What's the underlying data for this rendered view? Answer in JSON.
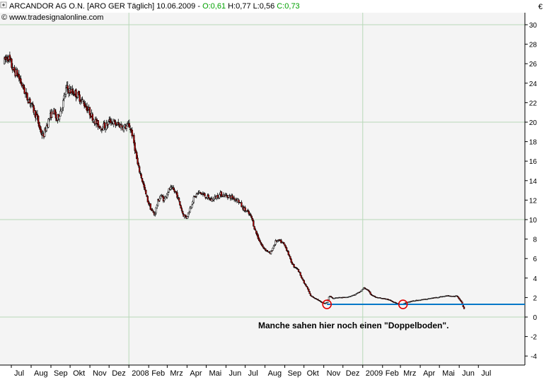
{
  "header": {
    "title_main": "ARCANDOR AG O.N. [ARO GER  Täglich] 10.06.2009 - ",
    "open_label": "O:0,61",
    "hl_label": " H:0,77 L:0,56 ",
    "close_label": "C:0,73",
    "copyright": "© www.tradesignalonline.com",
    "currency": "€"
  },
  "annotation": "Manche sahen hier noch einen \"Doppelboden\".",
  "colors": {
    "plot_bg": "#f4f4f4",
    "grid_major": "#b8d8b8",
    "grid_minor": "#dcdcdc",
    "candle_up_fill": "#ffffff",
    "candle_down_fill": "#b00000",
    "candle_outline": "#000000",
    "support_line": "#0078c8",
    "circle_marker": "#e00000",
    "open_text": "#00a000",
    "close_text": "#00a000"
  },
  "chart_data": {
    "type": "candlestick",
    "title": "ARCANDOR AG O.N. [ARO GER  Täglich] 10.06.2009",
    "xlabel": "",
    "ylabel": "€",
    "ylim": [
      -4,
      30
    ],
    "yticks": [
      30,
      28,
      26,
      24,
      22,
      20,
      18,
      16,
      14,
      12,
      10,
      8,
      6,
      4,
      2,
      0,
      -2,
      -4
    ],
    "xticks": [
      "Jul",
      "Aug",
      "Sep",
      "Okt",
      "Nov",
      "Dez",
      "2008",
      "Feb",
      "Mrz",
      "Apr",
      "Mai",
      "Jun",
      "Jul",
      "Aug",
      "Sep",
      "Okt",
      "Nov",
      "Dez",
      "2009",
      "Feb",
      "Mrz",
      "Apr",
      "Mai",
      "Jun",
      "Jul"
    ],
    "grid": true,
    "major_gridlines_y": [
      30,
      20,
      10,
      0
    ],
    "major_gridlines_x": [
      "2008",
      "2009"
    ],
    "last_bar": {
      "date": "10.06.2009",
      "open": 0.61,
      "high": 0.77,
      "low": 0.56,
      "close": 0.73
    },
    "price_path": [
      [
        "2007-06-20",
        26.2
      ],
      [
        "2007-06-25",
        26.8
      ],
      [
        "2007-06-30",
        26.0
      ],
      [
        "2007-07-05",
        25.2
      ],
      [
        "2007-07-10",
        25.0
      ],
      [
        "2007-07-15",
        24.2
      ],
      [
        "2007-07-20",
        23.5
      ],
      [
        "2007-07-25",
        22.5
      ],
      [
        "2007-07-30",
        22.2
      ],
      [
        "2007-08-05",
        21.2
      ],
      [
        "2007-08-10",
        20.5
      ],
      [
        "2007-08-15",
        19.2
      ],
      [
        "2007-08-20",
        18.5
      ],
      [
        "2007-08-25",
        19.6
      ],
      [
        "2007-08-30",
        20.5
      ],
      [
        "2007-09-05",
        21.2
      ],
      [
        "2007-09-10",
        20.2
      ],
      [
        "2007-09-15",
        21.0
      ],
      [
        "2007-09-20",
        22.0
      ],
      [
        "2007-09-25",
        23.5
      ],
      [
        "2007-10-01",
        23.2
      ],
      [
        "2007-10-08",
        23.0
      ],
      [
        "2007-10-15",
        22.6
      ],
      [
        "2007-10-22",
        22.0
      ],
      [
        "2007-10-30",
        21.2
      ],
      [
        "2007-11-05",
        20.5
      ],
      [
        "2007-11-12",
        19.8
      ],
      [
        "2007-11-19",
        19.5
      ],
      [
        "2007-11-26",
        19.6
      ],
      [
        "2007-12-03",
        20.2
      ],
      [
        "2007-12-10",
        19.8
      ],
      [
        "2007-12-17",
        19.7
      ],
      [
        "2007-12-24",
        19.5
      ],
      [
        "2008-01-02",
        19.6
      ],
      [
        "2008-01-06",
        18.8
      ],
      [
        "2008-01-10",
        17.5
      ],
      [
        "2008-01-15",
        15.5
      ],
      [
        "2008-01-20",
        14.5
      ],
      [
        "2008-01-25",
        13.2
      ],
      [
        "2008-01-30",
        12.0
      ],
      [
        "2008-02-05",
        11.0
      ],
      [
        "2008-02-10",
        10.5
      ],
      [
        "2008-02-15",
        11.8
      ],
      [
        "2008-02-20",
        12.5
      ],
      [
        "2008-02-25",
        12.0
      ],
      [
        "2008-03-01",
        12.8
      ],
      [
        "2008-03-06",
        13.2
      ],
      [
        "2008-03-11",
        13.0
      ],
      [
        "2008-03-16",
        12.6
      ],
      [
        "2008-03-21",
        11.5
      ],
      [
        "2008-03-26",
        10.5
      ],
      [
        "2008-03-31",
        10.2
      ],
      [
        "2008-04-05",
        11.0
      ],
      [
        "2008-04-10",
        12.0
      ],
      [
        "2008-04-15",
        12.5
      ],
      [
        "2008-04-20",
        12.8
      ],
      [
        "2008-04-25",
        12.6
      ],
      [
        "2008-05-02",
        12.3
      ],
      [
        "2008-05-09",
        12.0
      ],
      [
        "2008-05-16",
        12.3
      ],
      [
        "2008-05-23",
        12.6
      ],
      [
        "2008-05-30",
        12.5
      ],
      [
        "2008-06-06",
        12.4
      ],
      [
        "2008-06-13",
        12.2
      ],
      [
        "2008-06-20",
        12.0
      ],
      [
        "2008-06-27",
        11.2
      ],
      [
        "2008-07-04",
        10.8
      ],
      [
        "2008-07-11",
        10.2
      ],
      [
        "2008-07-16",
        9.0
      ],
      [
        "2008-07-22",
        8.0
      ],
      [
        "2008-07-28",
        7.2
      ],
      [
        "2008-08-04",
        6.8
      ],
      [
        "2008-08-09",
        6.5
      ],
      [
        "2008-08-14",
        7.2
      ],
      [
        "2008-08-18",
        7.8
      ],
      [
        "2008-08-24",
        7.8
      ],
      [
        "2008-08-30",
        7.5
      ],
      [
        "2008-09-05",
        6.8
      ],
      [
        "2008-09-10",
        5.8
      ],
      [
        "2008-09-15",
        5.2
      ],
      [
        "2008-09-20",
        5.0
      ],
      [
        "2008-09-25",
        4.4
      ],
      [
        "2008-10-01",
        3.5
      ],
      [
        "2008-10-06",
        3.0
      ],
      [
        "2008-10-11",
        2.2
      ],
      [
        "2008-10-16",
        2.0
      ],
      [
        "2008-10-22",
        1.8
      ],
      [
        "2008-10-28",
        1.5
      ],
      [
        "2008-11-02",
        1.4
      ],
      [
        "2008-11-06",
        1.5
      ],
      [
        "2008-11-10",
        2.2
      ],
      [
        "2008-11-15",
        1.9
      ],
      [
        "2008-11-22",
        2.0
      ],
      [
        "2008-12-01",
        2.0
      ],
      [
        "2008-12-10",
        2.1
      ],
      [
        "2008-12-20",
        2.3
      ],
      [
        "2008-12-28",
        2.6
      ],
      [
        "2009-01-03",
        3.0
      ],
      [
        "2009-01-08",
        2.8
      ],
      [
        "2009-01-14",
        2.3
      ],
      [
        "2009-01-22",
        2.0
      ],
      [
        "2009-02-01",
        1.9
      ],
      [
        "2009-02-10",
        1.8
      ],
      [
        "2009-02-20",
        1.5
      ],
      [
        "2009-02-27",
        1.3
      ],
      [
        "2009-03-05",
        1.3
      ],
      [
        "2009-03-10",
        1.5
      ],
      [
        "2009-03-17",
        1.6
      ],
      [
        "2009-03-25",
        1.7
      ],
      [
        "2009-04-05",
        1.8
      ],
      [
        "2009-04-15",
        1.9
      ],
      [
        "2009-04-25",
        2.0
      ],
      [
        "2009-05-05",
        2.1
      ],
      [
        "2009-05-15",
        2.2
      ],
      [
        "2009-05-22",
        2.1
      ],
      [
        "2009-05-28",
        2.2
      ],
      [
        "2009-06-04",
        1.6
      ],
      [
        "2009-06-08",
        0.9
      ],
      [
        "2009-06-10",
        0.73
      ]
    ],
    "support_level": 1.3,
    "support_start": "2008-11-06",
    "double_bottom_markers": [
      {
        "date": "2008-11-06",
        "value": 1.3
      },
      {
        "date": "2009-03-05",
        "value": 1.3
      }
    ]
  }
}
